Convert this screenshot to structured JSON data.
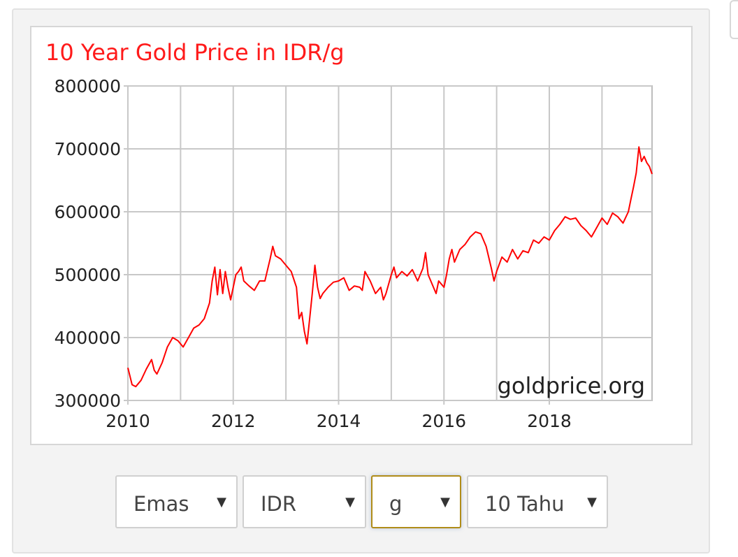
{
  "chart_data": {
    "type": "line",
    "title": "10 Year Gold Price in IDR/g",
    "watermark": "goldprice.org",
    "xlabel": "",
    "ylabel": "",
    "xlim": [
      2010,
      2019.95
    ],
    "ylim": [
      300000,
      800000
    ],
    "x_ticks": [
      "2010",
      "2012",
      "2014",
      "2016",
      "2018"
    ],
    "y_ticks": [
      "300000",
      "400000",
      "500000",
      "600000",
      "700000",
      "800000"
    ],
    "grid": true,
    "line_color": "#ff0000",
    "title_color": "#ff1a1a",
    "series": [
      {
        "name": "",
        "x": [
          2010.0,
          2010.08,
          2010.15,
          2010.25,
          2010.35,
          2010.45,
          2010.5,
          2010.55,
          2010.65,
          2010.75,
          2010.85,
          2010.95,
          2011.05,
          2011.15,
          2011.25,
          2011.35,
          2011.45,
          2011.55,
          2011.6,
          2011.65,
          2011.7,
          2011.75,
          2011.8,
          2011.85,
          2011.9,
          2011.95,
          2012.05,
          2012.1,
          2012.15,
          2012.2,
          2012.3,
          2012.4,
          2012.5,
          2012.6,
          2012.7,
          2012.75,
          2012.8,
          2012.9,
          2013.0,
          2013.1,
          2013.2,
          2013.25,
          2013.3,
          2013.35,
          2013.4,
          2013.45,
          2013.5,
          2013.55,
          2013.6,
          2013.65,
          2013.7,
          2013.8,
          2013.9,
          2014.0,
          2014.1,
          2014.2,
          2014.3,
          2014.4,
          2014.45,
          2014.5,
          2014.6,
          2014.7,
          2014.8,
          2014.85,
          2014.9,
          2015.0,
          2015.05,
          2015.1,
          2015.2,
          2015.3,
          2015.4,
          2015.5,
          2015.6,
          2015.65,
          2015.7,
          2015.8,
          2015.85,
          2015.9,
          2016.0,
          2016.05,
          2016.1,
          2016.15,
          2016.2,
          2016.3,
          2016.4,
          2016.5,
          2016.6,
          2016.7,
          2016.8,
          2016.9,
          2016.95,
          2017.0,
          2017.1,
          2017.2,
          2017.3,
          2017.4,
          2017.5,
          2017.6,
          2017.7,
          2017.8,
          2017.9,
          2018.0,
          2018.1,
          2018.2,
          2018.3,
          2018.4,
          2018.5,
          2018.6,
          2018.7,
          2018.8,
          2018.9,
          2019.0,
          2019.1,
          2019.2,
          2019.3,
          2019.4,
          2019.5,
          2019.55,
          2019.6,
          2019.65,
          2019.7,
          2019.75,
          2019.8,
          2019.85,
          2019.9,
          2019.95
        ],
        "y": [
          352000,
          325000,
          322000,
          332000,
          350000,
          365000,
          348000,
          342000,
          360000,
          385000,
          400000,
          395000,
          385000,
          400000,
          415000,
          420000,
          430000,
          455000,
          490000,
          512000,
          468000,
          508000,
          470000,
          505000,
          480000,
          460000,
          500000,
          505000,
          512000,
          490000,
          482000,
          475000,
          490000,
          490000,
          525000,
          545000,
          530000,
          525000,
          515000,
          505000,
          480000,
          430000,
          440000,
          410000,
          390000,
          430000,
          470000,
          515000,
          480000,
          462000,
          470000,
          480000,
          488000,
          490000,
          495000,
          475000,
          482000,
          480000,
          475000,
          505000,
          490000,
          470000,
          480000,
          460000,
          470000,
          500000,
          512000,
          495000,
          505000,
          498000,
          508000,
          490000,
          510000,
          535000,
          500000,
          480000,
          470000,
          490000,
          480000,
          500000,
          525000,
          540000,
          520000,
          540000,
          548000,
          560000,
          568000,
          565000,
          545000,
          510000,
          490000,
          505000,
          528000,
          520000,
          540000,
          525000,
          538000,
          535000,
          555000,
          550000,
          560000,
          555000,
          570000,
          580000,
          592000,
          588000,
          590000,
          578000,
          570000,
          560000,
          575000,
          590000,
          580000,
          598000,
          592000,
          582000,
          600000,
          620000,
          640000,
          662000,
          703000,
          680000,
          688000,
          678000,
          672000,
          660000
        ]
      }
    ]
  },
  "controls": {
    "metal": "Emas",
    "currency": "IDR",
    "unit": "g",
    "period": "10 Tahu"
  }
}
